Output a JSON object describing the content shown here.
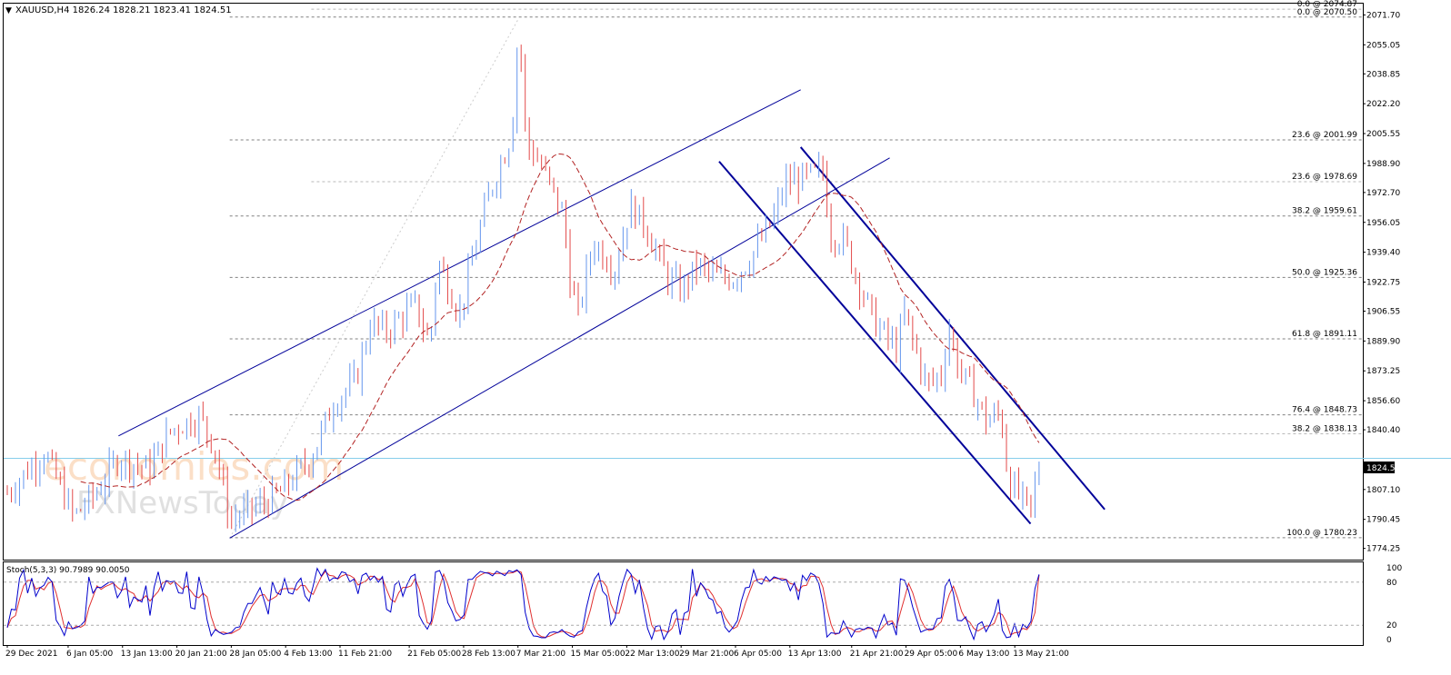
{
  "header": {
    "menu_glyph": "▼",
    "symbol_line": "XAUUSD,H4  1826.24 1828.21 1823.41 1824.51"
  },
  "watermark": {
    "line1": "economies.com",
    "line2": "FXNewsToday"
  },
  "colors": {
    "bull": "#6495ED",
    "bear": "#E34B4B",
    "ma": "#B22222",
    "trend": "#000099",
    "stoch_main": "#0000CC",
    "stoch_signal": "#E03030",
    "last_price": "#87CEEB",
    "grid": "#808080"
  },
  "indicator": {
    "label": "Stoch(5,3,3) 90.7989 90.0050",
    "main": 90.7989,
    "signal": 90.005
  },
  "price_axis": {
    "labels": [
      "2071.70",
      "2055.05",
      "2038.85",
      "2022.20",
      "2005.55",
      "1988.90",
      "1972.70",
      "1956.05",
      "1939.40",
      "1922.75",
      "1906.55",
      "1889.90",
      "1873.25",
      "1856.60",
      "1840.40",
      "1807.10",
      "1790.45",
      "1774.25"
    ],
    "last_price": "1824.51"
  },
  "stoch_axis": {
    "labels": [
      "100",
      "80",
      "20",
      "0"
    ]
  },
  "time_axis": {
    "labels": [
      "29 Dec 2021",
      "6 Jan 05:00",
      "13 Jan 13:00",
      "20 Jan 21:00",
      "28 Jan 05:00",
      "4 Feb 13:00",
      "11 Feb 21:00",
      "21 Feb 05:00",
      "28 Feb 13:00",
      "7 Mar 21:00",
      "15 Mar 05:00",
      "22 Mar 13:00",
      "29 Mar 21:00",
      "6 Apr 05:00",
      "13 Apr 13:00",
      "21 Apr 21:00",
      "29 Apr 05:00",
      "6 May 13:00",
      "13 May 21:00"
    ]
  },
  "fib_sets": {
    "first": [
      {
        "label": "0.0 @ 2074.87",
        "value": 2074.87
      },
      {
        "label": "23.6 @ 1978.69",
        "value": 1978.69
      },
      {
        "label": "38.2 @ 1838.13",
        "value": 1838.13
      }
    ],
    "second": [
      {
        "label": "0.0 @ 2070.50",
        "value": 2070.5
      },
      {
        "label": "23.6 @ 2001.99",
        "value": 2001.99
      },
      {
        "label": "38.2 @ 1959.61",
        "value": 1959.61
      },
      {
        "label": "50.0 @ 1925.36",
        "value": 1925.36
      },
      {
        "label": "61.8 @ 1891.11",
        "value": 1891.11
      },
      {
        "label": "76.4 @ 1848.73",
        "value": 1848.73
      },
      {
        "label": "100.0 @ 1780.23",
        "value": 1780.23
      }
    ]
  },
  "chart_data": {
    "type": "candlestick",
    "symbol": "XAUUSD",
    "timeframe": "H4",
    "ohlc_last": {
      "open": 1826.24,
      "high": 1828.21,
      "low": 1823.41,
      "close": 1824.51
    },
    "price_range": [
      1768,
      2078
    ],
    "stoch_range": [
      0,
      100
    ],
    "price_path": [
      [
        "29 Dec 2021",
        1805
      ],
      [
        "3 Jan",
        1828
      ],
      [
        "5 Jan",
        1810
      ],
      [
        "7 Jan",
        1792
      ],
      [
        "10 Jan",
        1805
      ],
      [
        "13 Jan",
        1825
      ],
      [
        "17 Jan",
        1818
      ],
      [
        "20 Jan",
        1840
      ],
      [
        "24 Jan",
        1848
      ],
      [
        "26 Jan",
        1830
      ],
      [
        "28 Jan",
        1790
      ],
      [
        "1 Feb",
        1798
      ],
      [
        "4 Feb",
        1806
      ],
      [
        "8 Feb",
        1825
      ],
      [
        "11 Feb",
        1855
      ],
      [
        "14 Feb",
        1868
      ],
      [
        "16 Feb",
        1900
      ],
      [
        "18 Feb",
        1895
      ],
      [
        "22 Feb",
        1910
      ],
      [
        "24 Feb",
        1888
      ],
      [
        "25 Feb",
        1935
      ],
      [
        "28 Feb",
        1905
      ],
      [
        "2 Mar",
        1940
      ],
      [
        "4 Mar",
        1972
      ],
      [
        "7 Mar",
        2005
      ],
      [
        "8 Mar",
        2068
      ],
      [
        "9 Mar",
        2000
      ],
      [
        "11 Mar",
        1988
      ],
      [
        "14 Mar",
        1960
      ],
      [
        "15 Mar",
        1920
      ],
      [
        "16 Mar",
        1905
      ],
      [
        "18 Mar",
        1945
      ],
      [
        "21 Mar",
        1930
      ],
      [
        "23 Mar",
        1965
      ],
      [
        "25 Mar",
        1955
      ],
      [
        "28 Mar",
        1925
      ],
      [
        "30 Mar",
        1918
      ],
      [
        "1 Apr",
        1932
      ],
      [
        "4 Apr",
        1925
      ],
      [
        "6 Apr",
        1925
      ],
      [
        "8 Apr",
        1935
      ],
      [
        "11 Apr",
        1955
      ],
      [
        "13 Apr",
        1978
      ],
      [
        "15 Apr",
        1980
      ],
      [
        "18 Apr",
        1985
      ],
      [
        "19 Apr",
        1950
      ],
      [
        "21 Apr",
        1945
      ],
      [
        "22 Apr",
        1932
      ],
      [
        "25 Apr",
        1900
      ],
      [
        "27 Apr",
        1890
      ],
      [
        "28 Apr",
        1885
      ],
      [
        "29 Apr",
        1905
      ],
      [
        "2 May",
        1865
      ],
      [
        "4 May",
        1872
      ],
      [
        "5 May",
        1898
      ],
      [
        "6 May",
        1878
      ],
      [
        "9 May",
        1855
      ],
      [
        "10 May",
        1845
      ],
      [
        "12 May",
        1850
      ],
      [
        "13 May",
        1812
      ],
      [
        "16 May",
        1795
      ],
      [
        "17 May",
        1818
      ],
      [
        "17 May 09:00",
        1824.51
      ]
    ]
  },
  "drawings": {
    "channel_up": {
      "p1": [
        "13 Jan",
        1837
      ],
      "p2": [
        "15 Apr",
        2030
      ]
    },
    "channel_up_lower": {
      "p1": [
        "28 Jan",
        1780
      ],
      "p2": [
        "27 Apr",
        1992
      ]
    },
    "channel_down_upper": {
      "p1": [
        "15 Apr",
        1998
      ],
      "p2": [
        "26 May",
        1796
      ]
    },
    "channel_down_lower": {
      "p1": [
        "4 Apr",
        1990
      ],
      "p2": [
        "16 May",
        1788
      ]
    }
  }
}
